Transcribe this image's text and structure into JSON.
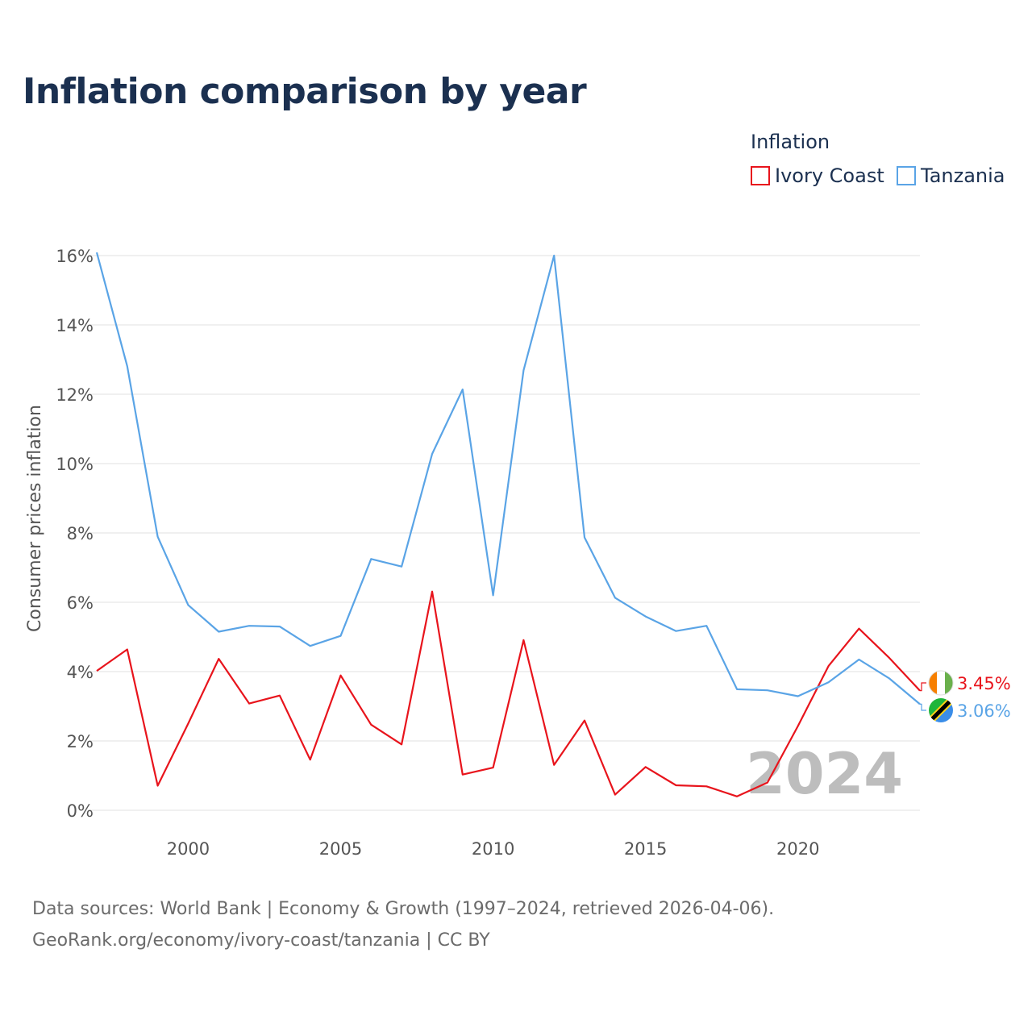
{
  "title": "Inflation comparison by year",
  "legend": {
    "title": "Inflation",
    "items": [
      {
        "label": "Ivory Coast",
        "color": "#e8141c"
      },
      {
        "label": "Tanzania",
        "color": "#5aa4e6"
      }
    ]
  },
  "source": {
    "line1": "Data sources: World Bank | Economy & Growth (1997–2024, retrieved 2026-04-06).",
    "line2": "GeoRank.org/economy/ivory-coast/tanzania | CC BY"
  },
  "chart_data": {
    "type": "line",
    "title": "Inflation comparison by year",
    "xlabel": "",
    "ylabel": "Consumer prices inflation",
    "xlim": [
      1997,
      2024
    ],
    "ylim": [
      0,
      16
    ],
    "grid": true,
    "y_ticks": [
      0,
      2,
      4,
      6,
      8,
      10,
      12,
      14,
      16
    ],
    "y_tick_labels": [
      "0%",
      "2%",
      "4%",
      "6%",
      "8%",
      "10%",
      "12%",
      "14%",
      "16%"
    ],
    "x_ticks": [
      2000,
      2005,
      2010,
      2015,
      2020
    ],
    "x_tick_labels": [
      "2000",
      "2005",
      "2010",
      "2015",
      "2020"
    ],
    "year_label": "2024",
    "x": [
      1997,
      1998,
      1999,
      2000,
      2001,
      2002,
      2003,
      2004,
      2005,
      2006,
      2007,
      2008,
      2009,
      2010,
      2011,
      2012,
      2013,
      2014,
      2015,
      2016,
      2017,
      2018,
      2019,
      2020,
      2021,
      2022,
      2023,
      2024
    ],
    "series": [
      {
        "name": "Ivory Coast",
        "color": "#e8141c",
        "end_label": "3.45%",
        "values": [
          4.02,
          4.64,
          0.71,
          2.5,
          4.37,
          3.08,
          3.31,
          1.46,
          3.89,
          2.47,
          1.9,
          6.31,
          1.03,
          1.23,
          4.91,
          1.31,
          2.59,
          0.45,
          1.25,
          0.72,
          0.69,
          0.4,
          0.8,
          2.43,
          4.16,
          5.24,
          4.39,
          3.45
        ]
      },
      {
        "name": "Tanzania",
        "color": "#5aa4e6",
        "end_label": "3.06%",
        "values": [
          16.09,
          12.81,
          7.89,
          5.92,
          5.15,
          5.32,
          5.3,
          4.74,
          5.03,
          7.25,
          7.03,
          10.28,
          12.14,
          6.2,
          12.69,
          16.0,
          7.87,
          6.13,
          5.59,
          5.17,
          5.32,
          3.49,
          3.46,
          3.29,
          3.69,
          4.35,
          3.8,
          3.06
        ]
      }
    ]
  }
}
